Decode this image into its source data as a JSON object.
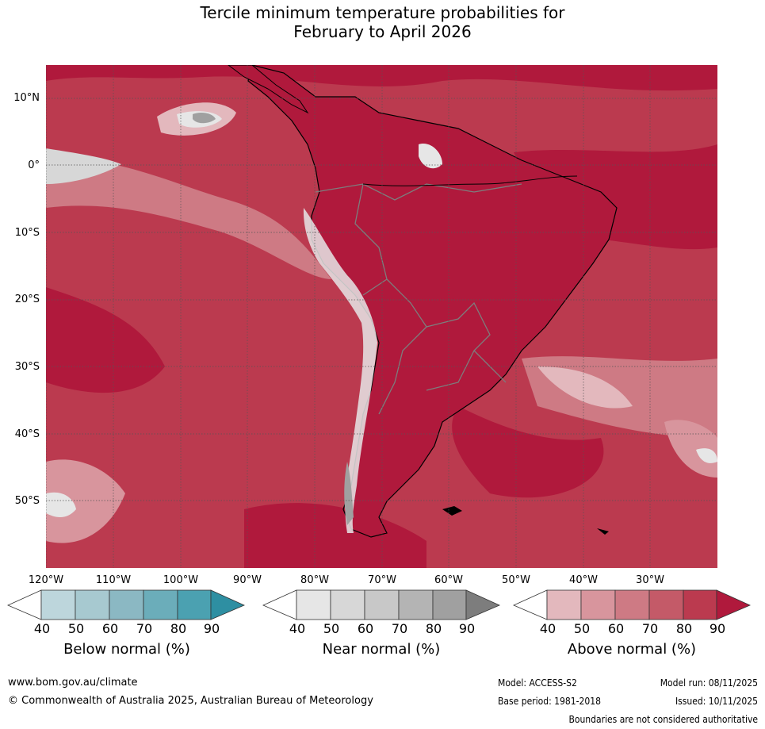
{
  "title_line1": "Tercile minimum temperature probabilities for",
  "title_line2": "February to April 2026",
  "lat_labels": [
    "10°N",
    "0°",
    "10°S",
    "20°S",
    "30°S",
    "40°S",
    "50°S"
  ],
  "lon_labels": [
    "120°W",
    "110°W",
    "100°W",
    "90°W",
    "80°W",
    "70°W",
    "60°W",
    "50°W",
    "40°W",
    "30°W"
  ],
  "colorbars": {
    "below": {
      "title": "Below normal (%)",
      "ticks": [
        "40",
        "50",
        "60",
        "70",
        "80",
        "90"
      ],
      "colors": [
        "#ffffff",
        "#bdd6dc",
        "#a7c9d0",
        "#8bb8c3",
        "#6badba",
        "#4ba1b1",
        "#2e8fa2"
      ]
    },
    "near": {
      "title": "Near normal (%)",
      "ticks": [
        "40",
        "50",
        "60",
        "70",
        "80",
        "90"
      ],
      "colors": [
        "#ffffff",
        "#e6e6e6",
        "#d7d7d7",
        "#c8c8c8",
        "#b4b4b4",
        "#a0a0a0",
        "#7d7d7d"
      ]
    },
    "above": {
      "title": "Above normal (%)",
      "ticks": [
        "40",
        "50",
        "60",
        "70",
        "80",
        "90"
      ],
      "colors": [
        "#ffffff",
        "#e3b8bd",
        "#d8959d",
        "#ce7a84",
        "#c45a68",
        "#bb3a4f",
        "#b0193c"
      ]
    }
  },
  "footer": {
    "website": "www.bom.gov.au/climate",
    "copyright": "© Commonwealth of Australia 2025, Australian Bureau of Meteorology",
    "model": "Model: ACCESS-S2",
    "base_period": "Base period: 1981-2018",
    "model_run": "Model run: 08/11/2025",
    "issued": "Issued: 10/11/2025",
    "disclaimer": "Boundaries are not considered authoritative"
  }
}
